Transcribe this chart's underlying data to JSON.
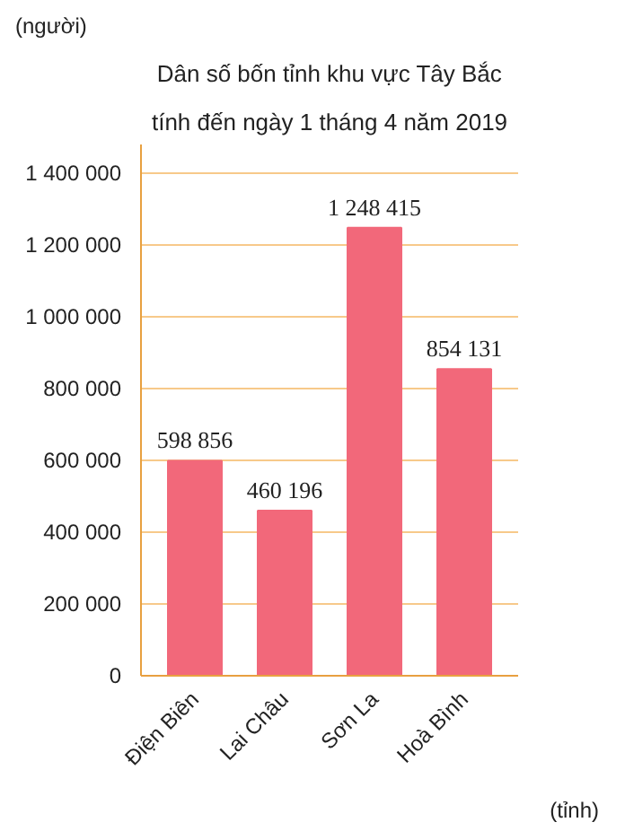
{
  "chart_data": {
    "type": "bar",
    "title": "Dân số bốn tỉnh khu vực Tây Bắc",
    "subtitle": "tính đến ngày 1 tháng 4 năm 2019",
    "ylabel": "(người)",
    "xlabel": "(tỉnh)",
    "categories": [
      "Điện Biên",
      "Lai Châu",
      "Sơn La",
      "Hoà Bình"
    ],
    "values": [
      598856,
      460196,
      1248415,
      854131
    ],
    "value_labels": [
      "598 856",
      "460 196",
      "1 248 415",
      "854 131"
    ],
    "color": "#f2687a",
    "ylim": [
      0,
      1480000
    ],
    "yticks": [
      {
        "value": 0,
        "label": "0"
      },
      {
        "value": 200000,
        "label": "200 000"
      },
      {
        "value": 400000,
        "label": "400 000"
      },
      {
        "value": 600000,
        "label": "600 000"
      },
      {
        "value": 800000,
        "label": "800 000"
      },
      {
        "value": 1000000,
        "label": "1 000 000"
      },
      {
        "value": 1200000,
        "label": "1 200 000"
      },
      {
        "value": 1400000,
        "label": "1 400 000"
      }
    ],
    "grid": "y"
  }
}
